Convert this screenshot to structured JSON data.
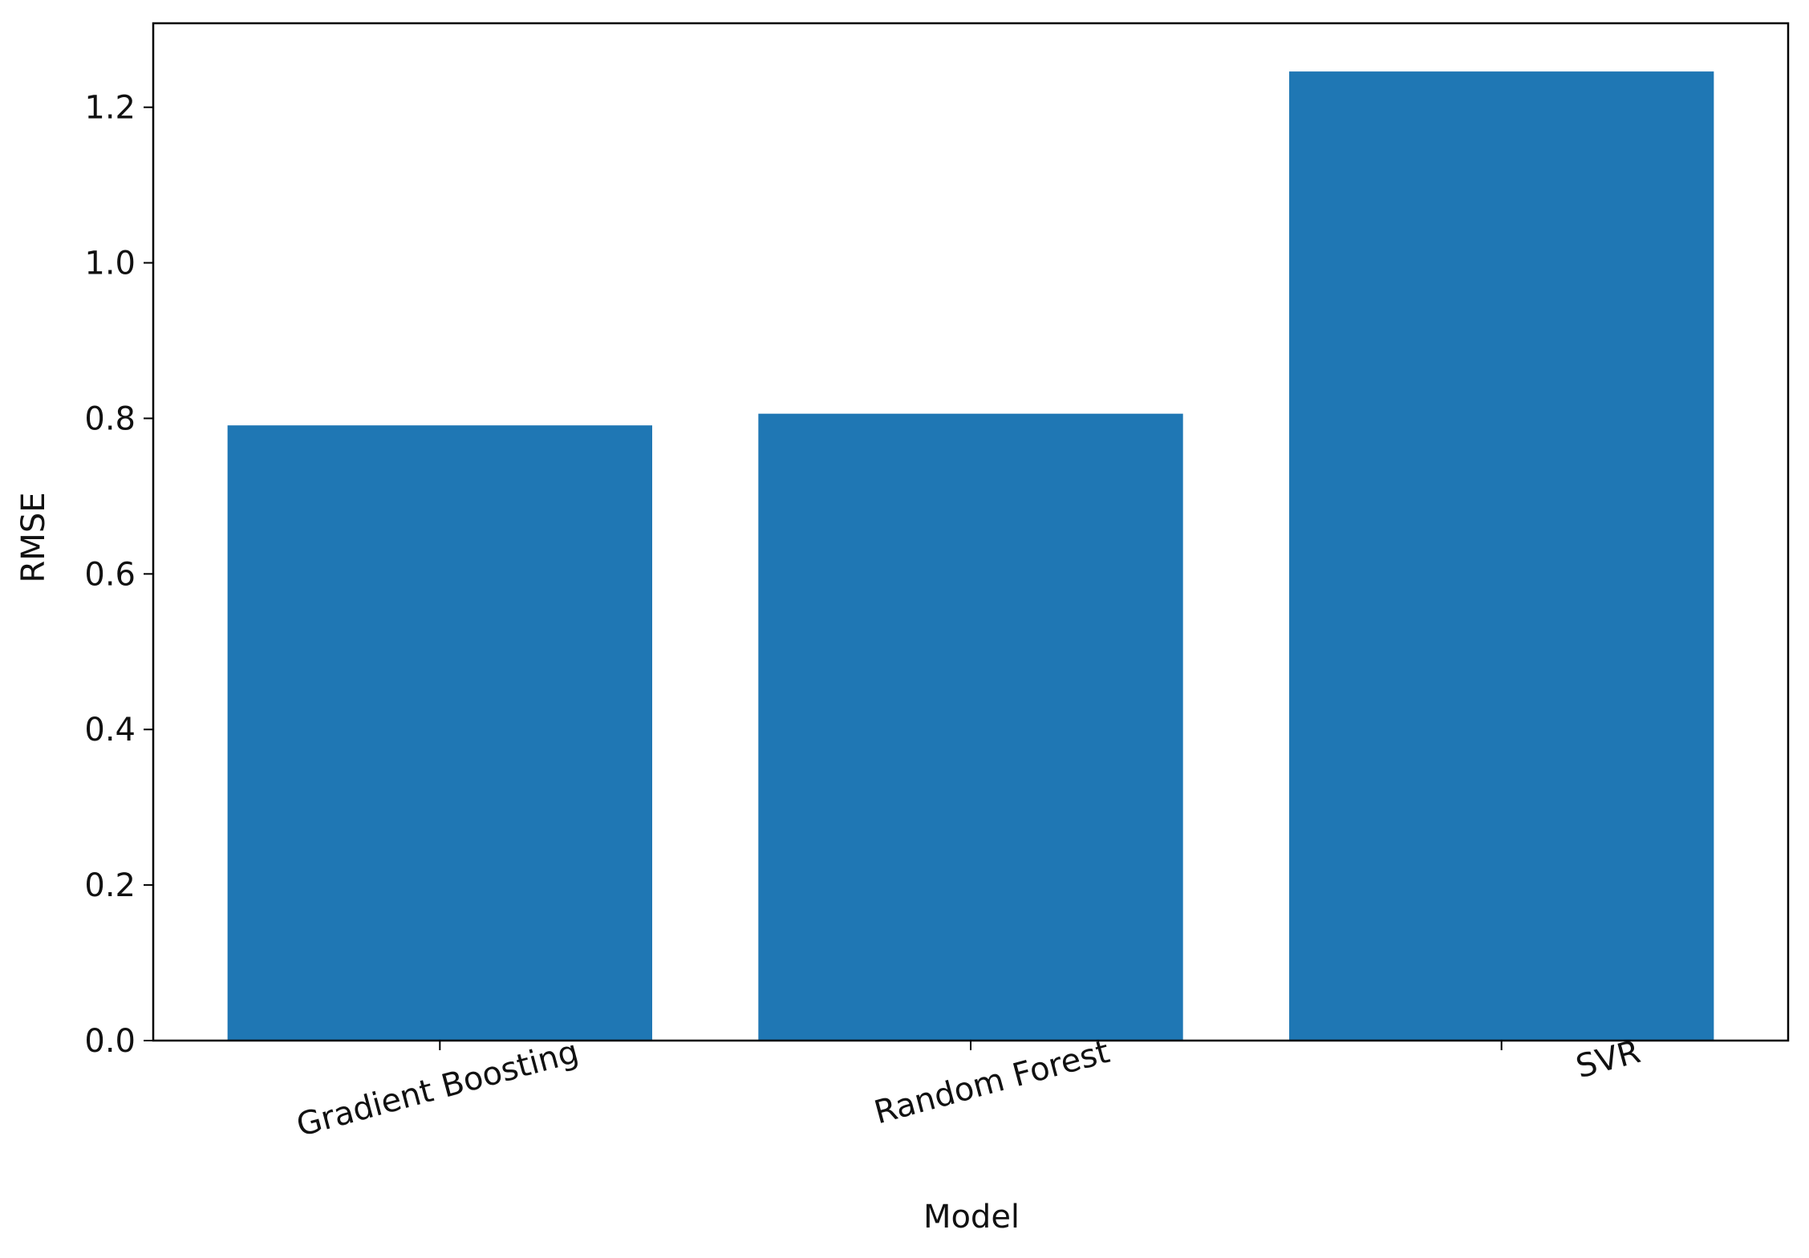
{
  "chart_data": {
    "type": "bar",
    "x_label": "Model",
    "y_label": "RMSE",
    "categories": [
      "Gradient Boosting",
      "Random Forest",
      "SVR"
    ],
    "values": [
      0.791,
      0.806,
      1.246
    ],
    "color": "#1f77b4",
    "ylim": [
      0,
      1.308
    ],
    "yticks": [
      {
        "value": 0,
        "label": "0.0"
      },
      0.2,
      0.4,
      0.6,
      0.8,
      {
        "value": 1,
        "label": "1.0"
      },
      1.2
    ],
    "grid": false
  }
}
